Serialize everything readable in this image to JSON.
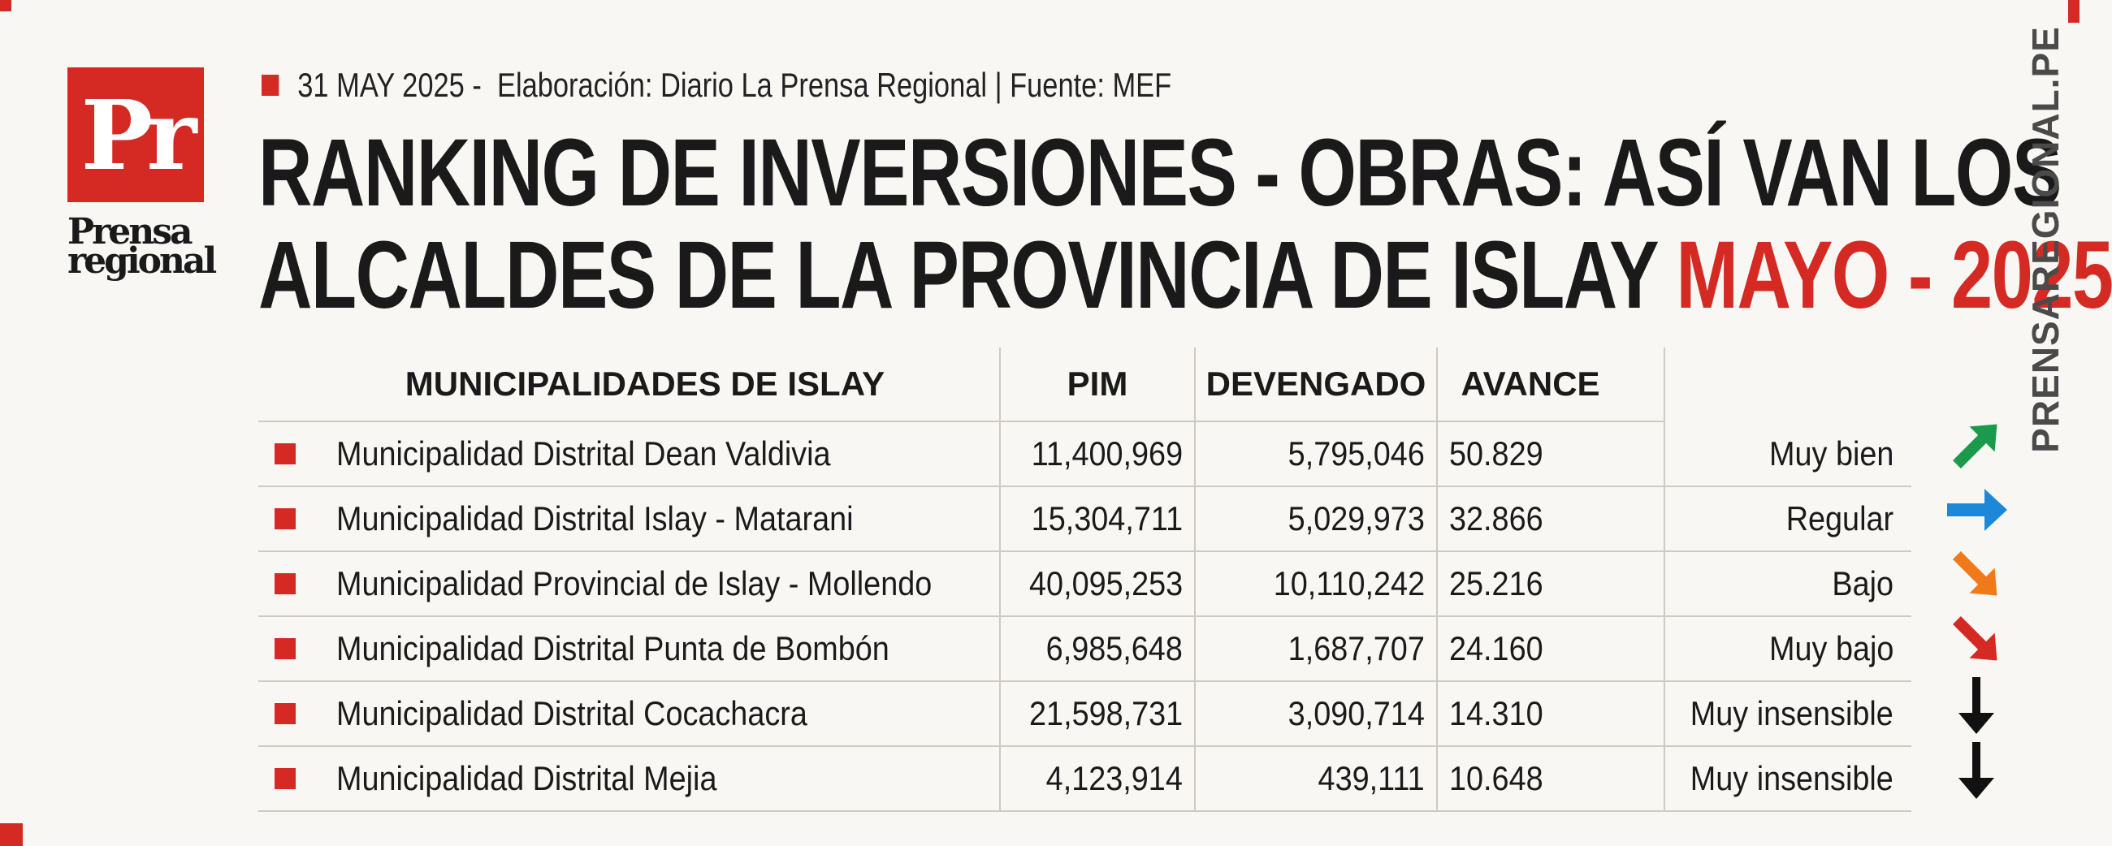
{
  "meta": {
    "date": "31 MAY 2025 -",
    "credit": "Elaboración: Diario La Prensa Regional | Fuente: MEF"
  },
  "logo": {
    "mark": "Pr",
    "word_line1": "Prensa",
    "word_line2": "regional"
  },
  "title": {
    "line1": "RANKING DE INVERSIONES - OBRAS: ASÍ VAN LOS",
    "line2": "ALCALDES DE LA PROVINCIA DE ISLAY",
    "accent": "MAYO - 2025"
  },
  "site": "PRENSAREGIONAL.PE",
  "table": {
    "headers": {
      "name": "MUNICIPALIDADES DE ISLAY",
      "pim": "PIM",
      "devengado": "DEVENGADO",
      "avance": "AVANCE"
    },
    "rows": [
      {
        "name": "Municipalidad Distrital Dean Valdivia",
        "pim": "11,400,969",
        "devengado": "5,795,046",
        "avance": "50.829",
        "status": "Muy bien",
        "trend": "up-right",
        "trend_color": "#1a9a4a"
      },
      {
        "name": "Municipalidad Distrital Islay - Matarani",
        "pim": "15,304,711",
        "devengado": "5,029,973",
        "avance": "32.866",
        "status": "Regular",
        "trend": "right",
        "trend_color": "#1e88d8"
      },
      {
        "name": "Municipalidad Provincial de Islay - Mollendo",
        "pim": "40,095,253",
        "devengado": "10,110,242",
        "avance": "25.216",
        "status": "Bajo",
        "trend": "down-right",
        "trend_color": "#f07a1a"
      },
      {
        "name": "Municipalidad Distrital Punta de Bombón",
        "pim": "6,985,648",
        "devengado": "1,687,707",
        "avance": "24.160",
        "status": "Muy bajo",
        "trend": "down-right",
        "trend_color": "#d42a23"
      },
      {
        "name": "Municipalidad Distrital Cocachacra",
        "pim": "21,598,731",
        "devengado": "3,090,714",
        "avance": "14.310",
        "status": "Muy insensible",
        "trend": "down",
        "trend_color": "#111111"
      },
      {
        "name": "Municipalidad Distrital Mejia",
        "pim": "4,123,914",
        "devengado": "439,111",
        "avance": "10.648",
        "status": "Muy insensible",
        "trend": "down",
        "trend_color": "#111111"
      }
    ]
  },
  "colors": {
    "accent": "#d42a23",
    "background": "#f9f7f3",
    "text": "#1a1a1a"
  }
}
